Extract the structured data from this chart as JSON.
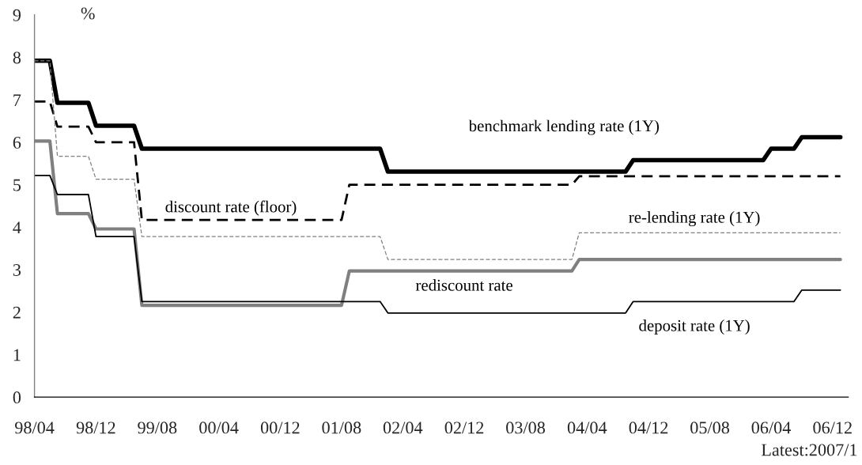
{
  "chart_data": {
    "type": "line",
    "ylabel": "%",
    "annotations": [
      "Latest:2007/1"
    ],
    "xlim": [
      "1998-04",
      "2007-02"
    ],
    "xticks": [
      {
        "value": "1998-04",
        "label": "98/04"
      },
      {
        "value": "1998-12",
        "label": "98/12"
      },
      {
        "value": "1999-08",
        "label": "99/08"
      },
      {
        "value": "2000-04",
        "label": "00/04"
      },
      {
        "value": "2000-12",
        "label": "00/12"
      },
      {
        "value": "2001-08",
        "label": "01/08"
      },
      {
        "value": "2002-04",
        "label": "02/04"
      },
      {
        "value": "2002-12",
        "label": "02/12"
      },
      {
        "value": "2003-08",
        "label": "03/08"
      },
      {
        "value": "2004-04",
        "label": "04/04"
      },
      {
        "value": "2004-12",
        "label": "04/12"
      },
      {
        "value": "2005-08",
        "label": "05/08"
      },
      {
        "value": "2006-04",
        "label": "06/04"
      },
      {
        "value": "2006-12",
        "label": "06/12"
      }
    ],
    "ylim": [
      0,
      9
    ],
    "yticks": [
      0,
      1,
      2,
      3,
      4,
      5,
      6,
      7,
      8,
      9
    ],
    "grid": false,
    "legend": false,
    "marker": "none",
    "series": [
      {
        "name": "benchmark lending rate (1Y)",
        "color": "#000000",
        "line_style": "solid",
        "x": [
          "1998-04",
          "1998-06",
          "1998-07",
          "1998-11",
          "1998-12",
          "1999-05",
          "1999-06",
          "2002-01",
          "2002-02",
          "2004-09",
          "2004-10",
          "2006-03",
          "2006-04",
          "2006-07",
          "2006-08",
          "2007-01"
        ],
        "values": [
          7.92,
          7.92,
          6.93,
          6.93,
          6.39,
          6.39,
          5.85,
          5.85,
          5.31,
          5.31,
          5.58,
          5.58,
          5.85,
          5.85,
          6.12,
          6.12
        ]
      },
      {
        "name": "discount rate (floor)",
        "color": "#000000",
        "line_style": "dashed",
        "x": [
          "1998-04",
          "1998-06",
          "1998-07",
          "1998-11",
          "1998-12",
          "1999-05",
          "1999-06",
          "2001-08",
          "2001-09",
          "2004-02",
          "2004-03",
          "2007-01"
        ],
        "values": [
          6.96,
          6.96,
          6.37,
          6.37,
          6.0,
          6.0,
          4.17,
          4.17,
          5.0,
          5.0,
          5.2,
          5.2
        ]
      },
      {
        "name": "re-lending rate (1Y)",
        "color": "#808080",
        "line_style": "dashed",
        "x": [
          "1998-04",
          "1998-06",
          "1998-07",
          "1998-11",
          "1998-12",
          "1999-05",
          "1999-06",
          "2002-01",
          "2002-02",
          "2004-02",
          "2004-03",
          "2007-01"
        ],
        "values": [
          7.92,
          7.92,
          5.67,
          5.67,
          5.13,
          5.13,
          3.78,
          3.78,
          3.24,
          3.24,
          3.87,
          3.87
        ]
      },
      {
        "name": "rediscount rate",
        "color": "#808080",
        "line_style": "solid",
        "x": [
          "1998-04",
          "1998-06",
          "1998-07",
          "1998-11",
          "1998-12",
          "1999-05",
          "1999-06",
          "2001-08",
          "2001-09",
          "2004-02",
          "2004-03",
          "2007-01"
        ],
        "values": [
          6.03,
          6.03,
          4.32,
          4.32,
          3.96,
          3.96,
          2.16,
          2.16,
          2.97,
          2.97,
          3.24,
          3.24
        ]
      },
      {
        "name": "deposit rate (1Y)",
        "color": "#000000",
        "line_style": "solid",
        "x": [
          "1998-04",
          "1998-06",
          "1998-07",
          "1998-11",
          "1998-12",
          "1999-05",
          "1999-06",
          "2002-01",
          "2002-02",
          "2004-09",
          "2004-10",
          "2006-07",
          "2006-08",
          "2007-01"
        ],
        "values": [
          5.22,
          5.22,
          4.77,
          4.77,
          3.78,
          3.78,
          2.25,
          2.25,
          1.98,
          1.98,
          2.25,
          2.25,
          2.52,
          2.52
        ]
      }
    ]
  }
}
